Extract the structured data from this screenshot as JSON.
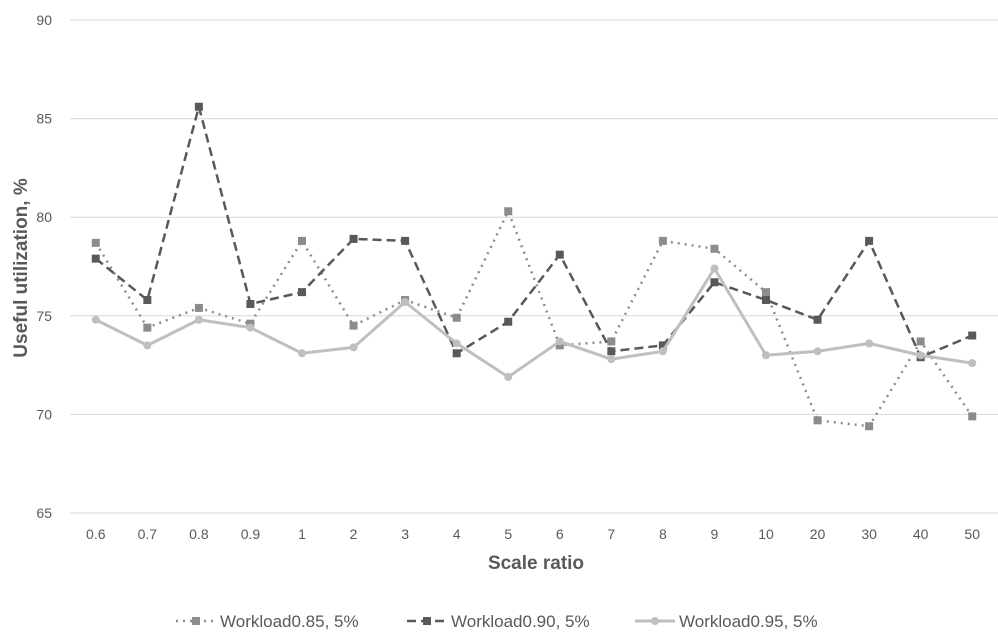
{
  "chart_data": {
    "type": "line",
    "xlabel": "Scale ratio",
    "ylabel": "Useful utilization, %",
    "ylim": [
      65,
      90
    ],
    "yticks": [
      65,
      70,
      75,
      80,
      85,
      90
    ],
    "grid": true,
    "legend_position": "bottom",
    "categories": [
      "0.6",
      "0.7",
      "0.8",
      "0.9",
      "1",
      "2",
      "3",
      "4",
      "5",
      "6",
      "7",
      "8",
      "9",
      "10",
      "20",
      "30",
      "40",
      "50"
    ],
    "series": [
      {
        "name": "Workload0.85, 5%",
        "style": "dotted",
        "marker": "square",
        "color": "#8c8c8c",
        "values": [
          78.7,
          74.4,
          75.4,
          74.6,
          78.8,
          74.5,
          75.8,
          74.9,
          80.3,
          73.5,
          73.7,
          78.8,
          78.4,
          76.2,
          69.7,
          69.4,
          73.7,
          69.9
        ]
      },
      {
        "name": "Workload0.90, 5%",
        "style": "dashed",
        "marker": "square",
        "color": "#595959",
        "values": [
          77.9,
          75.8,
          85.6,
          75.6,
          76.2,
          78.9,
          78.8,
          73.1,
          74.7,
          78.1,
          73.2,
          73.5,
          76.7,
          75.8,
          74.8,
          78.8,
          72.9,
          74.0
        ]
      },
      {
        "name": "Workload0.95, 5%",
        "style": "solid",
        "marker": "circle",
        "color": "#bfbfbf",
        "values": [
          74.8,
          73.5,
          74.8,
          74.4,
          73.1,
          73.4,
          75.7,
          73.6,
          71.9,
          73.7,
          72.8,
          73.2,
          77.4,
          73.0,
          73.2,
          73.6,
          73.0,
          72.6
        ]
      }
    ]
  }
}
